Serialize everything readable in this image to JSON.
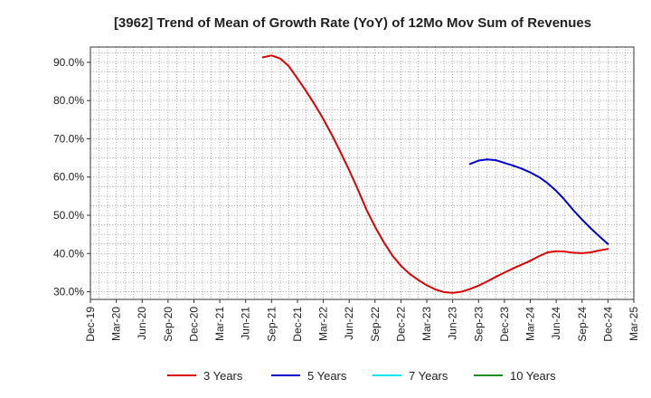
{
  "chart_data": {
    "type": "line",
    "title": "[3962]  Trend of Mean of Growth Rate (YoY) of 12Mo Mov Sum of Revenues",
    "xlabel": "",
    "ylabel": "",
    "ylim": [
      28,
      94
    ],
    "grid": true,
    "legend_position": "bottom",
    "y_ticks": [
      30,
      40,
      50,
      60,
      70,
      80,
      90
    ],
    "y_tick_labels": [
      "30.0%",
      "40.0%",
      "50.0%",
      "60.0%",
      "70.0%",
      "80.0%",
      "90.0%"
    ],
    "x_range": [
      "2019-12",
      "2025-03"
    ],
    "x_tick_labels": [
      "Dec-19",
      "Mar-20",
      "Jun-20",
      "Sep-20",
      "Dec-20",
      "Mar-21",
      "Jun-21",
      "Sep-21",
      "Dec-21",
      "Mar-22",
      "Jun-22",
      "Sep-22",
      "Dec-22",
      "Mar-23",
      "Jun-23",
      "Sep-23",
      "Dec-23",
      "Mar-24",
      "Jun-24",
      "Sep-24",
      "Dec-24",
      "Mar-25"
    ],
    "series": [
      {
        "name": "3 Years",
        "color": "#dd0000",
        "x": [
          "2021-08",
          "2021-09",
          "2021-10",
          "2021-11",
          "2021-12",
          "2022-01",
          "2022-02",
          "2022-03",
          "2022-04",
          "2022-05",
          "2022-06",
          "2022-07",
          "2022-08",
          "2022-09",
          "2022-10",
          "2022-11",
          "2022-12",
          "2023-01",
          "2023-02",
          "2023-03",
          "2023-04",
          "2023-05",
          "2023-06",
          "2023-07",
          "2023-08",
          "2023-09",
          "2023-10",
          "2023-11",
          "2023-12",
          "2024-01",
          "2024-02",
          "2024-03",
          "2024-04",
          "2024-05",
          "2024-06",
          "2024-07",
          "2024-08",
          "2024-09",
          "2024-10",
          "2024-11",
          "2024-12"
        ],
        "values": [
          91.3,
          91.8,
          91.0,
          89.0,
          85.8,
          82.5,
          79.0,
          75.2,
          71.0,
          66.5,
          61.8,
          56.8,
          51.5,
          47.0,
          43.0,
          39.5,
          36.8,
          34.7,
          33.1,
          31.7,
          30.6,
          29.9,
          29.7,
          30.0,
          30.7,
          31.6,
          32.7,
          33.9,
          35.0,
          36.1,
          37.1,
          38.1,
          39.3,
          40.3,
          40.6,
          40.5,
          40.2,
          40.1,
          40.3,
          40.8,
          41.2
        ],
        "max_x": "2024-12"
      },
      {
        "name": "5 Years",
        "color": "#0000cc",
        "x": [
          "2023-08",
          "2023-09",
          "2023-10",
          "2023-11",
          "2023-12",
          "2024-01",
          "2024-02",
          "2024-03",
          "2024-04",
          "2024-05",
          "2024-06",
          "2024-07",
          "2024-08",
          "2024-09",
          "2024-10",
          "2024-11",
          "2024-12"
        ],
        "values": [
          63.4,
          64.3,
          64.6,
          64.4,
          63.7,
          63.0,
          62.2,
          61.2,
          60.0,
          58.4,
          56.4,
          54.0,
          51.3,
          48.9,
          46.6,
          44.5,
          42.5
        ],
        "max_x": "2024-12"
      },
      {
        "name": "7 Years",
        "color": "#00e5ee",
        "x": [],
        "values": []
      },
      {
        "name": "10 Years",
        "color": "#228b22",
        "x": [],
        "values": []
      }
    ]
  }
}
